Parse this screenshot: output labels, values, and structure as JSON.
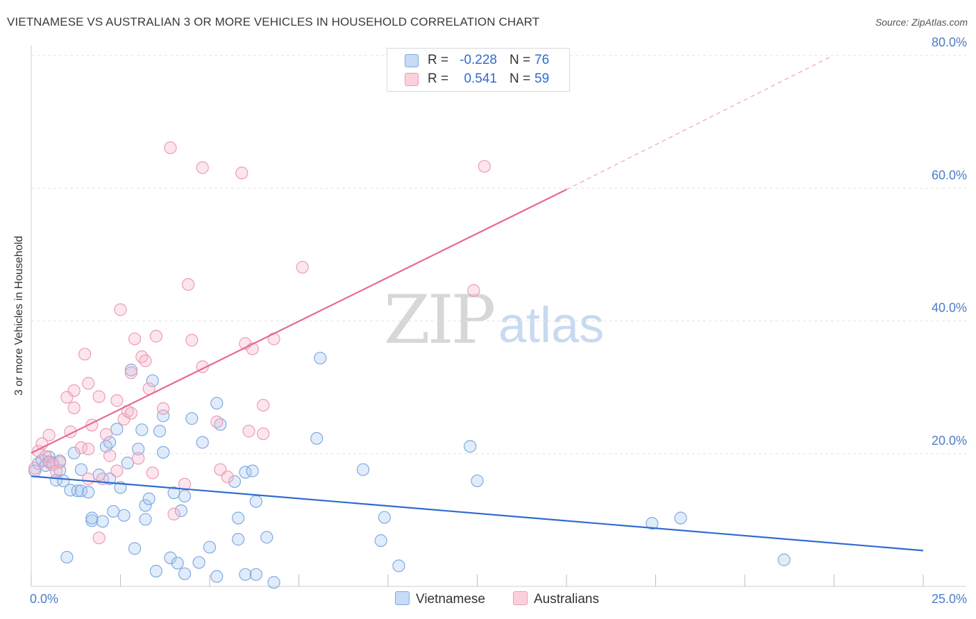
{
  "title": "VIETNAMESE VS AUSTRALIAN 3 OR MORE VEHICLES IN HOUSEHOLD CORRELATION CHART",
  "source": "Source: ZipAtlas.com",
  "watermark": {
    "zip": "ZIP",
    "atlas": "atlas"
  },
  "legend": {
    "rows": [
      {
        "r_label": "R =",
        "r_value": "-0.228",
        "n_label": "N =",
        "n_value": "76",
        "color": "#a9c8f0"
      },
      {
        "r_label": "R =",
        "r_value": "0.541",
        "n_label": "N =",
        "n_value": "59",
        "color": "#f6b8cc"
      }
    ]
  },
  "bottom_legend": {
    "series1": "Vietnamese",
    "series2": "Australians"
  },
  "chart_data": {
    "type": "scatter",
    "title": "VIETNAMESE VS AUSTRALIAN 3 OR MORE VEHICLES IN HOUSEHOLD CORRELATION CHART",
    "xlabel": "",
    "ylabel": "3 or more Vehicles in Household",
    "xlim": [
      0,
      25
    ],
    "ylim": [
      0,
      80
    ],
    "x_tick_labels": [
      "0.0%",
      "25.0%"
    ],
    "y_ticks": [
      20,
      40,
      60,
      80
    ],
    "y_tick_labels": [
      "20.0%",
      "40.0%",
      "60.0%",
      "80.0%"
    ],
    "grid": true,
    "legend_position": "top-center",
    "series": [
      {
        "name": "Vietnamese",
        "color": "#6a9fe0",
        "trend": {
          "x0": 0,
          "y0": 16.6,
          "x1": 25,
          "y1": 5.4
        },
        "points": [
          [
            0.2,
            18.5
          ],
          [
            0.3,
            19.0
          ],
          [
            0.4,
            18.2
          ],
          [
            0.5,
            19.5
          ],
          [
            0.5,
            18.8
          ],
          [
            0.6,
            18.6
          ],
          [
            0.7,
            16.0
          ],
          [
            0.8,
            17.5
          ],
          [
            0.8,
            18.9
          ],
          [
            0.9,
            15.9
          ],
          [
            1.0,
            4.4
          ],
          [
            1.1,
            14.5
          ],
          [
            1.2,
            20.1
          ],
          [
            1.3,
            14.4
          ],
          [
            1.4,
            14.4
          ],
          [
            1.4,
            17.6
          ],
          [
            1.6,
            14.2
          ],
          [
            1.7,
            9.9
          ],
          [
            1.7,
            10.3
          ],
          [
            1.9,
            16.8
          ],
          [
            2.0,
            9.8
          ],
          [
            2.1,
            21.1
          ],
          [
            2.2,
            21.7
          ],
          [
            2.2,
            16.2
          ],
          [
            2.4,
            23.7
          ],
          [
            2.3,
            11.3
          ],
          [
            2.5,
            14.9
          ],
          [
            2.6,
            10.7
          ],
          [
            2.7,
            18.6
          ],
          [
            2.8,
            32.6
          ],
          [
            2.9,
            5.7
          ],
          [
            3.0,
            20.7
          ],
          [
            3.1,
            23.6
          ],
          [
            3.2,
            10.1
          ],
          [
            3.2,
            12.2
          ],
          [
            3.3,
            13.2
          ],
          [
            3.4,
            31.0
          ],
          [
            3.5,
            2.3
          ],
          [
            3.6,
            23.4
          ],
          [
            3.7,
            20.2
          ],
          [
            3.7,
            25.7
          ],
          [
            3.9,
            4.3
          ],
          [
            4.0,
            14.1
          ],
          [
            4.1,
            3.5
          ],
          [
            4.2,
            11.4
          ],
          [
            4.3,
            1.9
          ],
          [
            4.3,
            13.6
          ],
          [
            4.5,
            25.3
          ],
          [
            4.7,
            3.6
          ],
          [
            4.8,
            21.7
          ],
          [
            5.0,
            5.9
          ],
          [
            5.2,
            1.5
          ],
          [
            5.2,
            27.6
          ],
          [
            5.3,
            24.4
          ],
          [
            5.7,
            15.8
          ],
          [
            5.8,
            7.1
          ],
          [
            5.8,
            10.3
          ],
          [
            6.0,
            17.2
          ],
          [
            6.0,
            1.8
          ],
          [
            6.2,
            17.4
          ],
          [
            6.3,
            12.8
          ],
          [
            6.3,
            1.8
          ],
          [
            6.6,
            7.4
          ],
          [
            6.8,
            0.6
          ],
          [
            8.1,
            34.4
          ],
          [
            8.0,
            22.3
          ],
          [
            9.3,
            17.6
          ],
          [
            9.9,
            10.4
          ],
          [
            9.8,
            6.9
          ],
          [
            10.3,
            3.1
          ],
          [
            12.3,
            21.1
          ],
          [
            12.5,
            15.9
          ],
          [
            17.4,
            9.5
          ],
          [
            18.2,
            10.3
          ],
          [
            21.1,
            4.0
          ],
          [
            0.1,
            17.4
          ]
        ]
      },
      {
        "name": "Australians",
        "color": "#f08fae",
        "trend": {
          "x0": 0,
          "y0": 20.1,
          "x1": 15.0,
          "y1": 59.8,
          "dash_x1": 22.4,
          "dash_y1": 79.8
        },
        "points": [
          [
            0.1,
            17.8
          ],
          [
            0.2,
            20.4
          ],
          [
            0.3,
            21.5
          ],
          [
            0.4,
            19.6
          ],
          [
            0.5,
            22.8
          ],
          [
            0.5,
            18.7
          ],
          [
            0.6,
            18.3
          ],
          [
            0.7,
            17.4
          ],
          [
            0.8,
            18.7
          ],
          [
            1.0,
            28.5
          ],
          [
            1.1,
            23.3
          ],
          [
            1.2,
            26.9
          ],
          [
            1.2,
            29.5
          ],
          [
            1.4,
            20.9
          ],
          [
            1.5,
            35.0
          ],
          [
            1.6,
            20.7
          ],
          [
            1.6,
            30.6
          ],
          [
            1.7,
            24.3
          ],
          [
            1.9,
            7.3
          ],
          [
            1.9,
            28.6
          ],
          [
            2.0,
            16.2
          ],
          [
            2.1,
            22.9
          ],
          [
            2.2,
            19.7
          ],
          [
            2.4,
            17.4
          ],
          [
            2.4,
            28.0
          ],
          [
            2.5,
            41.7
          ],
          [
            2.6,
            25.2
          ],
          [
            2.7,
            26.4
          ],
          [
            2.8,
            26.1
          ],
          [
            2.8,
            32.2
          ],
          [
            2.9,
            37.3
          ],
          [
            3.0,
            19.3
          ],
          [
            3.1,
            34.6
          ],
          [
            3.2,
            34.0
          ],
          [
            3.3,
            29.8
          ],
          [
            3.4,
            17.1
          ],
          [
            3.5,
            37.7
          ],
          [
            3.7,
            26.8
          ],
          [
            3.9,
            66.1
          ],
          [
            4.0,
            10.9
          ],
          [
            4.3,
            15.4
          ],
          [
            4.4,
            45.5
          ],
          [
            4.5,
            37.1
          ],
          [
            4.8,
            63.1
          ],
          [
            4.8,
            33.1
          ],
          [
            5.2,
            24.8
          ],
          [
            5.3,
            17.6
          ],
          [
            5.5,
            16.5
          ],
          [
            5.9,
            62.3
          ],
          [
            6.0,
            36.6
          ],
          [
            6.1,
            23.4
          ],
          [
            6.2,
            35.8
          ],
          [
            6.5,
            23.0
          ],
          [
            6.5,
            27.3
          ],
          [
            6.8,
            37.3
          ],
          [
            7.6,
            48.1
          ],
          [
            12.4,
            44.6
          ],
          [
            12.7,
            63.3
          ],
          [
            1.6,
            16.2
          ]
        ]
      }
    ]
  }
}
